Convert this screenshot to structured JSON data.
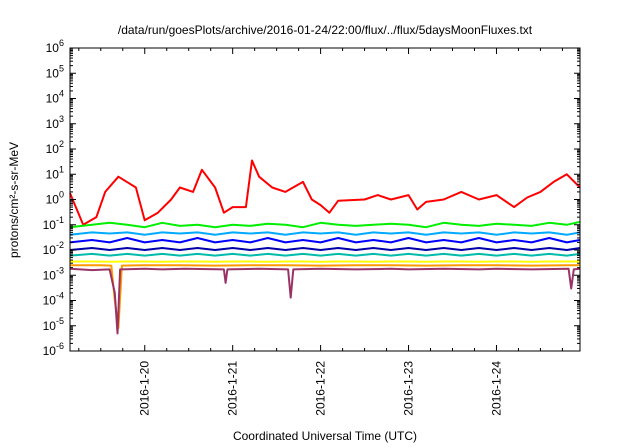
{
  "chart_data": {
    "type": "line",
    "title": "/data/run/goesPlots/archive/2016-01-24/22:00/flux/../flux/5daysMoonFluxes.txt",
    "xlabel": "Coordinated Universal Time (UTC)",
    "ylabel": "protons/cm²-s-sr-MeV",
    "yscale": "log",
    "ylim": [
      1e-06,
      1000000.0
    ],
    "xlim_days": [
      19.15,
      24.95
    ],
    "yticks": [
      {
        "base": "10",
        "exp": "-6",
        "value": 1e-06
      },
      {
        "base": "10",
        "exp": "-5",
        "value": 1e-05
      },
      {
        "base": "10",
        "exp": "-4",
        "value": 0.0001
      },
      {
        "base": "10",
        "exp": "-3",
        "value": 0.001
      },
      {
        "base": "10",
        "exp": "-2",
        "value": 0.01
      },
      {
        "base": "10",
        "exp": "-1",
        "value": 0.1
      },
      {
        "base": "10",
        "exp": "0",
        "value": 1
      },
      {
        "base": "10",
        "exp": "1",
        "value": 10
      },
      {
        "base": "10",
        "exp": "2",
        "value": 100
      },
      {
        "base": "10",
        "exp": "3",
        "value": 1000
      },
      {
        "base": "10",
        "exp": "4",
        "value": 10000
      },
      {
        "base": "10",
        "exp": "5",
        "value": 100000
      },
      {
        "base": "10",
        "exp": "6",
        "value": 1000000
      }
    ],
    "xticks": [
      {
        "label": "2016-1-20",
        "day": 20
      },
      {
        "label": "2016-1-21",
        "day": 21
      },
      {
        "label": "2016-1-22",
        "day": 22
      },
      {
        "label": "2016-1-23",
        "day": 23
      },
      {
        "label": "2016-1-24",
        "day": 24
      }
    ],
    "grid": false,
    "legend": "none",
    "series": [
      {
        "color": "#ff0000",
        "points": [
          [
            19.15,
            1.8
          ],
          [
            19.3,
            0.1
          ],
          [
            19.45,
            0.2
          ],
          [
            19.55,
            2
          ],
          [
            19.7,
            8
          ],
          [
            19.9,
            3
          ],
          [
            20.0,
            0.15
          ],
          [
            20.15,
            0.3
          ],
          [
            20.3,
            1
          ],
          [
            20.4,
            3
          ],
          [
            20.55,
            2
          ],
          [
            20.65,
            15
          ],
          [
            20.8,
            3
          ],
          [
            20.9,
            0.3
          ],
          [
            21.0,
            0.5
          ],
          [
            21.15,
            0.5
          ],
          [
            21.22,
            35
          ],
          [
            21.3,
            8
          ],
          [
            21.45,
            3
          ],
          [
            21.6,
            2
          ],
          [
            21.8,
            5
          ],
          [
            21.9,
            1
          ],
          [
            22.0,
            0.6
          ],
          [
            22.1,
            0.3
          ],
          [
            22.2,
            0.9
          ],
          [
            22.5,
            1
          ],
          [
            22.65,
            1.5
          ],
          [
            22.8,
            1
          ],
          [
            23.0,
            1.5
          ],
          [
            23.1,
            0.4
          ],
          [
            23.2,
            0.8
          ],
          [
            23.4,
            1
          ],
          [
            23.6,
            2
          ],
          [
            23.8,
            1
          ],
          [
            24.0,
            1.5
          ],
          [
            24.2,
            0.5
          ],
          [
            24.35,
            1.2
          ],
          [
            24.5,
            2
          ],
          [
            24.65,
            5
          ],
          [
            24.8,
            10
          ],
          [
            24.95,
            3
          ]
        ]
      },
      {
        "color": "#00ee00",
        "points": [
          [
            19.15,
            0.08
          ],
          [
            19.4,
            0.1
          ],
          [
            19.6,
            0.12
          ],
          [
            19.8,
            0.1
          ],
          [
            20.0,
            0.08
          ],
          [
            20.2,
            0.12
          ],
          [
            20.4,
            0.09
          ],
          [
            20.6,
            0.1
          ],
          [
            20.8,
            0.08
          ],
          [
            21.0,
            0.1
          ],
          [
            21.2,
            0.09
          ],
          [
            21.4,
            0.11
          ],
          [
            21.6,
            0.1
          ],
          [
            21.8,
            0.08
          ],
          [
            22.0,
            0.12
          ],
          [
            22.2,
            0.1
          ],
          [
            22.4,
            0.09
          ],
          [
            22.6,
            0.1
          ],
          [
            22.8,
            0.11
          ],
          [
            23.0,
            0.1
          ],
          [
            23.2,
            0.08
          ],
          [
            23.4,
            0.12
          ],
          [
            23.6,
            0.1
          ],
          [
            23.8,
            0.09
          ],
          [
            24.0,
            0.11
          ],
          [
            24.2,
            0.1
          ],
          [
            24.4,
            0.09
          ],
          [
            24.6,
            0.12
          ],
          [
            24.8,
            0.1
          ],
          [
            24.95,
            0.13
          ]
        ]
      },
      {
        "color": "#00aaff",
        "points": [
          [
            19.15,
            0.04
          ],
          [
            19.4,
            0.05
          ],
          [
            19.6,
            0.045
          ],
          [
            19.8,
            0.05
          ],
          [
            20.0,
            0.04
          ],
          [
            20.2,
            0.05
          ],
          [
            20.4,
            0.045
          ],
          [
            20.6,
            0.05
          ],
          [
            20.8,
            0.04
          ],
          [
            21.0,
            0.05
          ],
          [
            21.2,
            0.045
          ],
          [
            21.4,
            0.05
          ],
          [
            21.6,
            0.04
          ],
          [
            21.8,
            0.05
          ],
          [
            22.0,
            0.045
          ],
          [
            22.2,
            0.05
          ],
          [
            22.4,
            0.04
          ],
          [
            22.6,
            0.05
          ],
          [
            22.8,
            0.045
          ],
          [
            23.0,
            0.05
          ],
          [
            23.2,
            0.04
          ],
          [
            23.4,
            0.05
          ],
          [
            23.6,
            0.045
          ],
          [
            23.8,
            0.05
          ],
          [
            24.0,
            0.04
          ],
          [
            24.2,
            0.05
          ],
          [
            24.4,
            0.045
          ],
          [
            24.6,
            0.05
          ],
          [
            24.8,
            0.04
          ],
          [
            24.95,
            0.05
          ]
        ]
      },
      {
        "color": "#0000ff",
        "points": [
          [
            19.15,
            0.02
          ],
          [
            19.4,
            0.025
          ],
          [
            19.6,
            0.02
          ],
          [
            19.8,
            0.03
          ],
          [
            20.0,
            0.02
          ],
          [
            20.2,
            0.025
          ],
          [
            20.4,
            0.02
          ],
          [
            20.6,
            0.03
          ],
          [
            20.8,
            0.02
          ],
          [
            21.0,
            0.025
          ],
          [
            21.2,
            0.02
          ],
          [
            21.4,
            0.03
          ],
          [
            21.6,
            0.02
          ],
          [
            21.8,
            0.025
          ],
          [
            22.0,
            0.02
          ],
          [
            22.2,
            0.03
          ],
          [
            22.4,
            0.02
          ],
          [
            22.6,
            0.025
          ],
          [
            22.8,
            0.02
          ],
          [
            23.0,
            0.03
          ],
          [
            23.2,
            0.02
          ],
          [
            23.4,
            0.025
          ],
          [
            23.6,
            0.02
          ],
          [
            23.8,
            0.03
          ],
          [
            24.0,
            0.02
          ],
          [
            24.2,
            0.025
          ],
          [
            24.4,
            0.02
          ],
          [
            24.6,
            0.03
          ],
          [
            24.8,
            0.02
          ],
          [
            24.95,
            0.025
          ]
        ]
      },
      {
        "color": "#0000aa",
        "points": [
          [
            19.15,
            0.01
          ],
          [
            19.4,
            0.012
          ],
          [
            19.6,
            0.01
          ],
          [
            19.8,
            0.012
          ],
          [
            20.0,
            0.01
          ],
          [
            20.2,
            0.012
          ],
          [
            20.4,
            0.01
          ],
          [
            20.6,
            0.012
          ],
          [
            20.8,
            0.01
          ],
          [
            21.0,
            0.012
          ],
          [
            21.2,
            0.01
          ],
          [
            21.4,
            0.012
          ],
          [
            21.6,
            0.01
          ],
          [
            21.8,
            0.012
          ],
          [
            22.0,
            0.01
          ],
          [
            22.2,
            0.012
          ],
          [
            22.4,
            0.01
          ],
          [
            22.6,
            0.012
          ],
          [
            22.8,
            0.01
          ],
          [
            23.0,
            0.012
          ],
          [
            23.2,
            0.01
          ],
          [
            23.4,
            0.012
          ],
          [
            23.6,
            0.01
          ],
          [
            23.8,
            0.012
          ],
          [
            24.0,
            0.01
          ],
          [
            24.2,
            0.012
          ],
          [
            24.4,
            0.01
          ],
          [
            24.6,
            0.012
          ],
          [
            24.8,
            0.01
          ],
          [
            24.95,
            0.012
          ]
        ]
      },
      {
        "color": "#00bbaa",
        "points": [
          [
            19.15,
            0.006
          ],
          [
            19.4,
            0.007
          ],
          [
            19.6,
            0.006
          ],
          [
            19.8,
            0.007
          ],
          [
            20.0,
            0.006
          ],
          [
            20.2,
            0.007
          ],
          [
            20.4,
            0.006
          ],
          [
            20.6,
            0.007
          ],
          [
            20.8,
            0.006
          ],
          [
            21.0,
            0.007
          ],
          [
            21.2,
            0.006
          ],
          [
            21.4,
            0.007
          ],
          [
            21.6,
            0.006
          ],
          [
            21.8,
            0.007
          ],
          [
            22.0,
            0.006
          ],
          [
            22.2,
            0.007
          ],
          [
            22.4,
            0.006
          ],
          [
            22.6,
            0.007
          ],
          [
            22.8,
            0.006
          ],
          [
            23.0,
            0.007
          ],
          [
            23.2,
            0.006
          ],
          [
            23.4,
            0.007
          ],
          [
            23.6,
            0.006
          ],
          [
            23.8,
            0.007
          ],
          [
            24.0,
            0.006
          ],
          [
            24.2,
            0.007
          ],
          [
            24.4,
            0.006
          ],
          [
            24.6,
            0.007
          ],
          [
            24.8,
            0.006
          ],
          [
            24.95,
            0.007
          ]
        ]
      },
      {
        "color": "#ffff00",
        "points": [
          [
            19.15,
            0.0035
          ],
          [
            19.4,
            0.0035
          ],
          [
            19.6,
            0.0034
          ],
          [
            19.8,
            0.0035
          ],
          [
            20.0,
            0.0035
          ],
          [
            20.2,
            0.0034
          ],
          [
            20.4,
            0.0035
          ],
          [
            20.6,
            0.0035
          ],
          [
            20.8,
            0.0034
          ],
          [
            21.0,
            0.0035
          ],
          [
            21.2,
            0.0035
          ],
          [
            21.4,
            0.0034
          ],
          [
            21.6,
            0.0035
          ],
          [
            21.8,
            0.0035
          ],
          [
            22.0,
            0.0034
          ],
          [
            22.2,
            0.0035
          ],
          [
            22.4,
            0.0035
          ],
          [
            22.6,
            0.0034
          ],
          [
            22.8,
            0.0035
          ],
          [
            23.0,
            0.0035
          ],
          [
            23.2,
            0.0034
          ],
          [
            23.4,
            0.0035
          ],
          [
            23.6,
            0.0035
          ],
          [
            23.8,
            0.0034
          ],
          [
            24.0,
            0.0035
          ],
          [
            24.2,
            0.0035
          ],
          [
            24.4,
            0.0034
          ],
          [
            24.6,
            0.0035
          ],
          [
            24.8,
            0.0035
          ],
          [
            24.95,
            0.0035
          ]
        ]
      },
      {
        "color": "#ff9900",
        "points": [
          [
            19.15,
            0.0025
          ],
          [
            19.5,
            0.0025
          ],
          [
            19.62,
            0.0024
          ],
          [
            19.66,
            0.0001
          ],
          [
            19.7,
            8e-06
          ],
          [
            19.74,
            0.0024
          ],
          [
            20.0,
            0.0025
          ],
          [
            20.4,
            0.0025
          ],
          [
            20.8,
            0.0024
          ],
          [
            21.2,
            0.0025
          ],
          [
            21.6,
            0.0025
          ],
          [
            22.0,
            0.0024
          ],
          [
            22.4,
            0.0025
          ],
          [
            22.8,
            0.0025
          ],
          [
            23.2,
            0.0024
          ],
          [
            23.6,
            0.0025
          ],
          [
            24.0,
            0.0025
          ],
          [
            24.4,
            0.0024
          ],
          [
            24.8,
            0.0025
          ],
          [
            24.95,
            0.0025
          ]
        ]
      },
      {
        "color": "#993366",
        "points": [
          [
            19.15,
            0.0018
          ],
          [
            19.4,
            0.0016
          ],
          [
            19.6,
            0.0017
          ],
          [
            19.66,
            0.0002
          ],
          [
            19.69,
            5e-06
          ],
          [
            19.72,
            0.0017
          ],
          [
            20.0,
            0.0018
          ],
          [
            20.2,
            0.0017
          ],
          [
            20.45,
            0.0018
          ],
          [
            20.9,
            0.0017
          ],
          [
            20.92,
            0.0005
          ],
          [
            20.94,
            0.0017
          ],
          [
            21.3,
            0.0018
          ],
          [
            21.63,
            0.0017
          ],
          [
            21.66,
            0.00013
          ],
          [
            21.69,
            0.0017
          ],
          [
            22.0,
            0.0018
          ],
          [
            22.4,
            0.0017
          ],
          [
            22.8,
            0.0018
          ],
          [
            23.0,
            0.0017
          ],
          [
            23.4,
            0.0018
          ],
          [
            23.8,
            0.0017
          ],
          [
            24.0,
            0.0018
          ],
          [
            24.4,
            0.0017
          ],
          [
            24.82,
            0.0018
          ],
          [
            24.85,
            0.0003
          ],
          [
            24.88,
            0.0017
          ],
          [
            24.95,
            0.0018
          ]
        ]
      }
    ]
  }
}
